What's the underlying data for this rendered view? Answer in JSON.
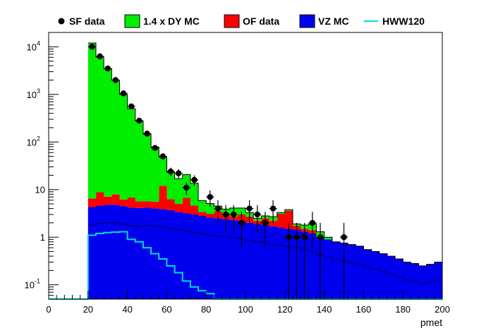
{
  "chart_data": {
    "type": "bar",
    "title": "",
    "xlabel": "pmet",
    "ylabel": "",
    "xlim": [
      0,
      200
    ],
    "ylim": [
      0.05,
      20000
    ],
    "yscale": "log",
    "grid": false,
    "legend_position": "top",
    "x_tick_labels": [
      "0",
      "20",
      "40",
      "60",
      "80",
      "100",
      "120",
      "140",
      "160",
      "180",
      "200"
    ],
    "y_tick_labels": [
      {
        "base": "10",
        "exp": "-1",
        "value": 0.1
      },
      {
        "base": "1",
        "exp": "",
        "value": 1
      },
      {
        "base": "10",
        "exp": "",
        "value": 10
      },
      {
        "base": "10",
        "exp": "2",
        "value": 100
      },
      {
        "base": "10",
        "exp": "3",
        "value": 1000
      },
      {
        "base": "10",
        "exp": "4",
        "value": 10000
      }
    ],
    "bin_edges": [
      20,
      24,
      28,
      32,
      36,
      40,
      44,
      48,
      52,
      56,
      60,
      64,
      68,
      72,
      76,
      80,
      84,
      88,
      92,
      96,
      100,
      104,
      108,
      112,
      116,
      120,
      124,
      128,
      132,
      136,
      140,
      144,
      148,
      152,
      156,
      160,
      164,
      168,
      172,
      176,
      180,
      184,
      188,
      192,
      196,
      200
    ],
    "stacked_series": [
      {
        "name": "VZ MC",
        "color": "#0000ee",
        "values": [
          4.3,
          4.6,
          4.8,
          4.8,
          4.5,
          4.2,
          4.1,
          4.2,
          4.0,
          3.9,
          3.7,
          3.4,
          3.2,
          3.0,
          2.8,
          2.6,
          2.5,
          2.4,
          2.3,
          2.2,
          2.0,
          1.9,
          1.8,
          1.7,
          1.6,
          1.5,
          1.45,
          1.3,
          1.2,
          1.0,
          0.9,
          0.8,
          0.75,
          0.7,
          0.65,
          0.55,
          0.5,
          0.45,
          0.4,
          0.35,
          0.3,
          0.28,
          0.25,
          0.27,
          0.3
        ]
      },
      {
        "name": "OF data",
        "color": "#ff0000",
        "values": [
          2.2,
          4.2,
          2.3,
          3.1,
          1.7,
          2.6,
          1.6,
          1.5,
          1.6,
          8.1,
          2.6,
          1.6,
          3.5,
          1.6,
          0.6,
          0.5,
          1.0,
          0.8,
          0.4,
          0.8,
          0.7,
          0.3,
          0.7,
          0.5,
          1.5,
          2.1,
          0.3,
          0.2,
          0.2,
          0,
          0,
          0,
          0,
          0,
          0,
          0,
          0,
          0,
          0,
          0,
          0,
          0,
          0,
          0,
          0
        ]
      },
      {
        "name": "1.4 x DY MC",
        "color": "#00ee00",
        "values": [
          11994,
          6091,
          3493,
          1993,
          994,
          494,
          272,
          141,
          73,
          36,
          17,
          12,
          14,
          9,
          2.5,
          2.0,
          1.0,
          0.7,
          1.4,
          1.1,
          0.6,
          0.3,
          0.3,
          0.5,
          0.2,
          0.2,
          0.15,
          0.3,
          0.5,
          0.3,
          0.1,
          0,
          0,
          0,
          0,
          0,
          0,
          0,
          0,
          0,
          0,
          0,
          0,
          0,
          0
        ]
      }
    ],
    "series": [
      {
        "name": "SF data",
        "type": "points",
        "color": "#000000",
        "x": [
          22,
          26,
          30,
          34,
          38,
          42,
          46,
          50,
          54,
          58,
          62,
          66,
          70,
          74,
          78,
          82,
          86,
          90,
          94,
          98,
          102,
          106,
          110,
          114,
          118,
          122,
          126,
          130,
          134,
          138,
          142,
          146,
          150,
          154,
          158,
          162,
          166,
          170,
          174,
          178,
          182,
          186,
          190,
          194,
          198
        ],
        "y": [
          10000,
          6300,
          3500,
          2000,
          1050,
          560,
          280,
          150,
          75,
          50,
          24,
          22,
          11,
          16,
          0,
          7,
          4,
          3,
          3,
          2,
          4,
          3,
          2,
          4,
          0,
          1,
          1,
          1,
          2,
          1,
          0,
          0,
          1,
          0,
          0,
          0,
          0,
          0,
          0,
          0,
          0,
          0,
          0,
          0,
          0
        ]
      },
      {
        "name": "HWW120",
        "type": "step",
        "color": "#00dddd",
        "bin_edges": [
          0,
          20,
          24,
          28,
          32,
          36,
          40,
          44,
          48,
          52,
          56,
          60,
          64,
          68,
          72,
          76,
          80,
          84,
          200
        ],
        "values": [
          0.05,
          1.1,
          1.2,
          1.25,
          1.28,
          1.3,
          0.9,
          0.8,
          0.6,
          0.45,
          0.35,
          0.25,
          0.18,
          0.12,
          0.09,
          0.075,
          0.065,
          0.05
        ]
      }
    ]
  }
}
